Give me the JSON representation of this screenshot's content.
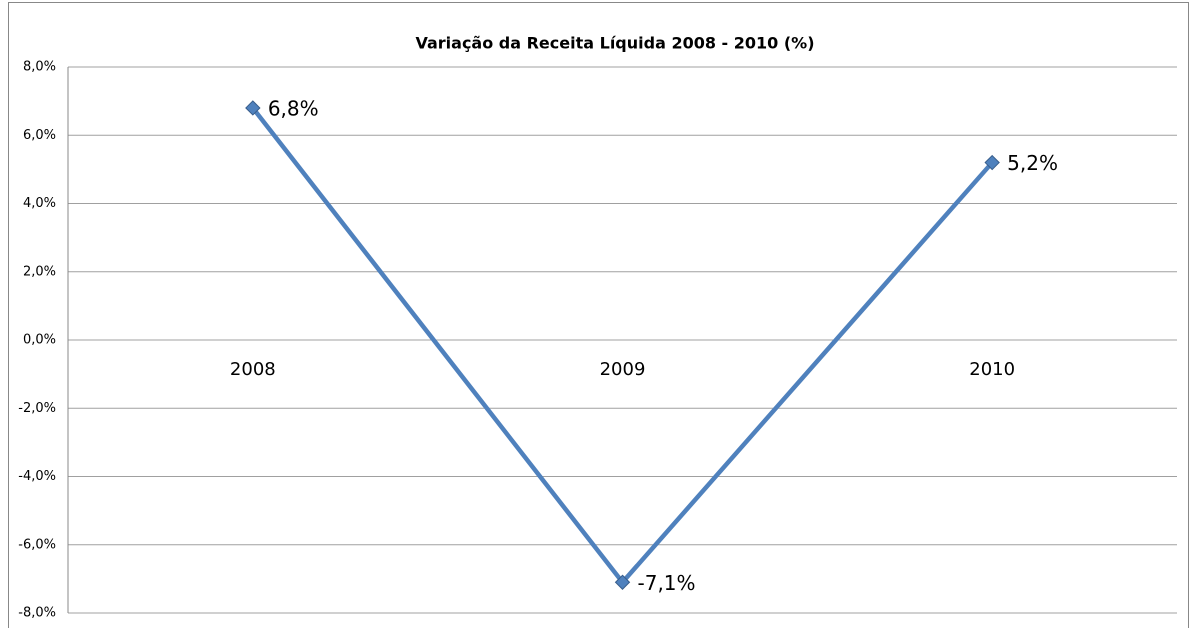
{
  "chart_data": {
    "type": "line",
    "title": "Variação da Receita Líquida 2008 - 2010 (%)",
    "categories": [
      "2008",
      "2009",
      "2010"
    ],
    "series": [
      {
        "name": "Variação da Receita Líquida",
        "color": "#4f81bd",
        "values": [
          6.8,
          -7.1,
          5.2
        ],
        "value_labels": [
          "6,8%",
          "-7,1%",
          "5,2%"
        ]
      }
    ],
    "ylim": [
      -8,
      8
    ],
    "yticks": [
      {
        "value": -8,
        "label": "-8,0%"
      },
      {
        "value": -6,
        "label": "-6,0%"
      },
      {
        "value": -4,
        "label": "-4,0%"
      },
      {
        "value": -2,
        "label": "-2,0%"
      },
      {
        "value": 0,
        "label": "0,0%"
      },
      {
        "value": 2,
        "label": "2,0%"
      },
      {
        "value": 4,
        "label": "4,0%"
      },
      {
        "value": 6,
        "label": "6,0%"
      },
      {
        "value": 8,
        "label": "8,0%"
      }
    ],
    "grid": true
  }
}
